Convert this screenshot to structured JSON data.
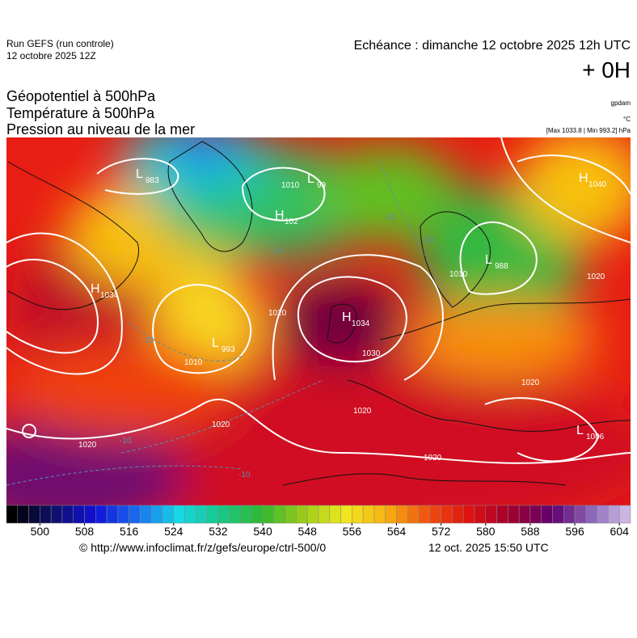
{
  "header": {
    "run": "Run GEFS (run controle)",
    "run_date": "12 octobre 2025 12Z",
    "valid": "Echéance : dimanche 12 octobre 2025 12h UTC",
    "lead": "+ 0H"
  },
  "fields": [
    "Géopotentiel à 500hPa",
    "Température à 500hPa",
    "Pression au niveau de la mer"
  ],
  "units": [
    "gpdam",
    "°C",
    "[Max 1033.8 | Min 993.2] hPa"
  ],
  "map": {
    "centers": [
      {
        "kind": "H",
        "value": "1034"
      },
      {
        "kind": "L",
        "value": "983"
      },
      {
        "kind": "L",
        "value": "99"
      },
      {
        "kind": "H",
        "value": "102"
      },
      {
        "kind": "L",
        "value": "993"
      },
      {
        "kind": "H",
        "value": "1034"
      },
      {
        "kind": "L",
        "value": "988"
      },
      {
        "kind": "H",
        "value": "1040"
      },
      {
        "kind": "L",
        "value": "1006"
      }
    ],
    "isobar_labels": [
      "1010",
      "1020",
      "1020",
      "1020",
      "1030",
      "1010",
      "1020",
      "1020",
      "1020",
      "1010",
      "1020"
    ],
    "temperature_labels": [
      "-20",
      "-20",
      "-10",
      "-10",
      "-20",
      "-20"
    ]
  },
  "colorbar": {
    "range": [
      494,
      606
    ],
    "step": 2,
    "ticks": [
      500,
      508,
      516,
      524,
      532,
      540,
      548,
      556,
      564,
      572,
      580,
      588,
      596,
      604
    ],
    "colors": [
      "#000000",
      "#10106a",
      "#1010d8",
      "#1a6cf0",
      "#16d8e8",
      "#18c88a",
      "#30b830",
      "#9ccc18",
      "#f0e820",
      "#f8b010",
      "#f05010",
      "#e01010",
      "#a00030",
      "#600070",
      "#9070c0",
      "#e0d0f0"
    ]
  },
  "footer": {
    "source": "© http://www.infoclimat.fr/z/gefs/europe/ctrl-500/0",
    "date": "12 oct. 2025 15:50 UTC"
  }
}
